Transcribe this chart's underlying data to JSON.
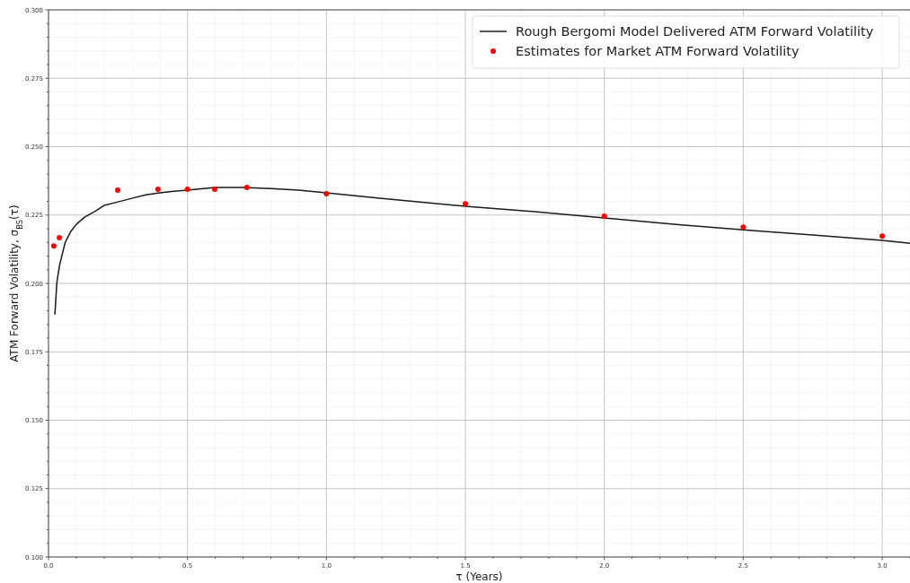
{
  "chart_data": {
    "type": "line",
    "xlabel": "τ (Years)",
    "ylabel": "ATM Forward Volatility, σ$_{BS}$(τ)",
    "xlim": [
      0,
      3.1
    ],
    "ylim": [
      0.1,
      0.3
    ],
    "xticks": [
      {
        "value": 0,
        "label": "0.0"
      },
      {
        "value": 0.1,
        "label": null
      },
      {
        "value": 0.2,
        "label": null
      },
      {
        "value": 0.3,
        "label": null
      },
      {
        "value": 0.4,
        "label": null
      },
      {
        "value": 0.5,
        "label": "0.5"
      },
      {
        "value": 0.6,
        "label": null
      },
      {
        "value": 0.7,
        "label": null
      },
      {
        "value": 0.8,
        "label": null
      },
      {
        "value": 0.9,
        "label": null
      },
      {
        "value": 1,
        "label": "1.0"
      },
      {
        "value": 1.1,
        "label": null
      },
      {
        "value": 1.2,
        "label": null
      },
      {
        "value": 1.3,
        "label": null
      },
      {
        "value": 1.4,
        "label": null
      },
      {
        "value": 1.5,
        "label": "1.5"
      },
      {
        "value": 1.6,
        "label": null
      },
      {
        "value": 1.7,
        "label": null
      },
      {
        "value": 1.8,
        "label": null
      },
      {
        "value": 1.9,
        "label": null
      },
      {
        "value": 2,
        "label": "2.0"
      },
      {
        "value": 2.1,
        "label": null
      },
      {
        "value": 2.2,
        "label": null
      },
      {
        "value": 2.3,
        "label": null
      },
      {
        "value": 2.4,
        "label": null
      },
      {
        "value": 2.5,
        "label": "2.5"
      },
      {
        "value": 2.6,
        "label": null
      },
      {
        "value": 2.7,
        "label": null
      },
      {
        "value": 2.8,
        "label": null
      },
      {
        "value": 2.9,
        "label": null
      },
      {
        "value": 3,
        "label": "3.0"
      },
      {
        "value": 3.1,
        "label": null
      }
    ],
    "yticks": [
      {
        "value": 0.1,
        "label": "0.100"
      },
      {
        "value": 0.105,
        "label": null
      },
      {
        "value": 0.11,
        "label": null
      },
      {
        "value": 0.115,
        "label": null
      },
      {
        "value": 0.12,
        "label": null
      },
      {
        "value": 0.125,
        "label": "0.125"
      },
      {
        "value": 0.13,
        "label": null
      },
      {
        "value": 0.135,
        "label": null
      },
      {
        "value": 0.14,
        "label": null
      },
      {
        "value": 0.145,
        "label": null
      },
      {
        "value": 0.15,
        "label": "0.150"
      },
      {
        "value": 0.155,
        "label": null
      },
      {
        "value": 0.16,
        "label": null
      },
      {
        "value": 0.165,
        "label": null
      },
      {
        "value": 0.17,
        "label": null
      },
      {
        "value": 0.175,
        "label": "0.175"
      },
      {
        "value": 0.18,
        "label": null
      },
      {
        "value": 0.185,
        "label": null
      },
      {
        "value": 0.19,
        "label": null
      },
      {
        "value": 0.195,
        "label": null
      },
      {
        "value": 0.2,
        "label": "0.200"
      },
      {
        "value": 0.205,
        "label": null
      },
      {
        "value": 0.21,
        "label": null
      },
      {
        "value": 0.215,
        "label": null
      },
      {
        "value": 0.22,
        "label": null
      },
      {
        "value": 0.225,
        "label": "0.225"
      },
      {
        "value": 0.23,
        "label": null
      },
      {
        "value": 0.235,
        "label": null
      },
      {
        "value": 0.24,
        "label": null
      },
      {
        "value": 0.245,
        "label": null
      },
      {
        "value": 0.25,
        "label": "0.250"
      },
      {
        "value": 0.255,
        "label": null
      },
      {
        "value": 0.26,
        "label": null
      },
      {
        "value": 0.265,
        "label": null
      },
      {
        "value": 0.27,
        "label": null
      },
      {
        "value": 0.275,
        "label": "0.275"
      },
      {
        "value": 0.28,
        "label": null
      },
      {
        "value": 0.285,
        "label": null
      },
      {
        "value": 0.29,
        "label": null
      },
      {
        "value": 0.295,
        "label": null
      },
      {
        "value": 0.3,
        "label": "0.300"
      }
    ],
    "grid": true,
    "legend": "top right",
    "series": [
      {
        "name": "Rough Bergomi Model Delivered ATM Forward Volatility",
        "color": "#1a1a1a",
        "marker": "none",
        "line_style": "solid",
        "x": [
          0.023,
          0.03,
          0.04,
          0.06,
          0.08,
          0.1,
          0.13,
          0.17,
          0.2,
          0.25,
          0.3,
          0.35,
          0.4,
          0.45,
          0.5,
          0.6,
          0.7,
          0.8,
          0.9,
          1.0,
          1.2,
          1.5,
          1.75,
          2.0,
          2.25,
          2.5,
          2.75,
          3.0,
          3.1
        ],
        "values": [
          0.1888,
          0.2003,
          0.2068,
          0.215,
          0.219,
          0.2216,
          0.2242,
          0.2265,
          0.2285,
          0.2298,
          0.2311,
          0.2324,
          0.2331,
          0.2337,
          0.2341,
          0.2351,
          0.2351,
          0.2347,
          0.2341,
          0.2331,
          0.2311,
          0.2282,
          0.2262,
          0.2239,
          0.2216,
          0.2196,
          0.2177,
          0.2157,
          0.2147
        ]
      },
      {
        "name": "Estimates for Market ATM Forward Volatility",
        "type": "scatter",
        "color": "#ff0000",
        "marker": "circle",
        "x": [
          0.019,
          0.039,
          0.249,
          0.394,
          0.5,
          0.598,
          0.714,
          1.0,
          1.5,
          2.0,
          2.5,
          3.0
        ],
        "values": [
          0.2137,
          0.2167,
          0.2341,
          0.2344,
          0.2344,
          0.2344,
          0.2351,
          0.2328,
          0.2291,
          0.2246,
          0.2206,
          0.2173
        ]
      }
    ]
  }
}
